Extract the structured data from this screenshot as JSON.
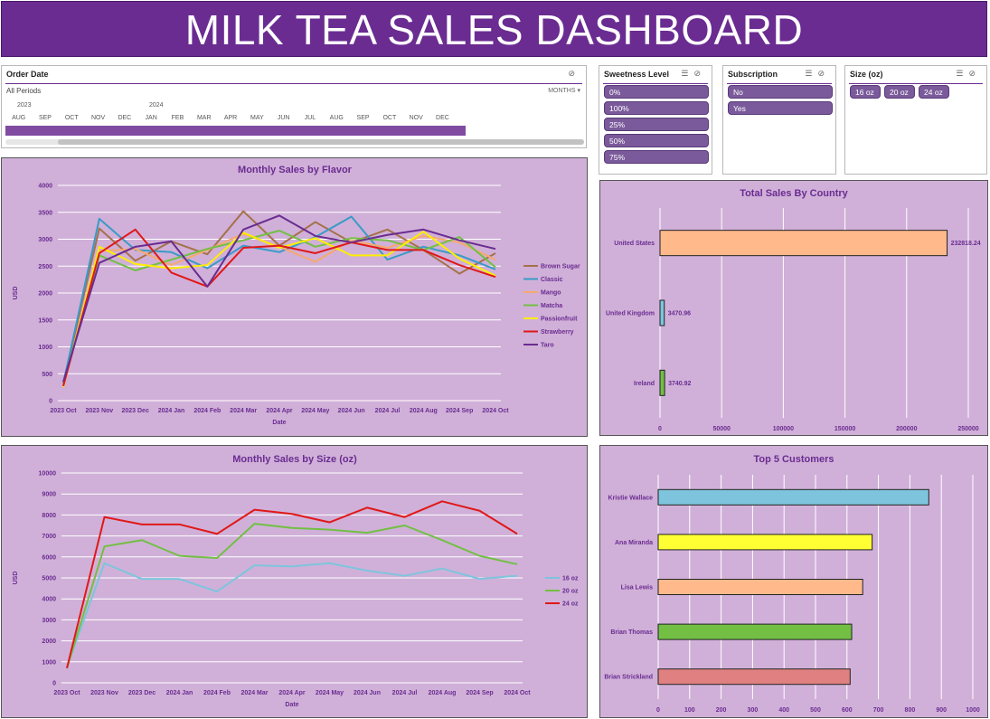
{
  "title": "MILK TEA SALES DASHBOARD",
  "order_date": {
    "label": "Order Date",
    "periods": "All Periods",
    "granularity": "MONTHS",
    "years": [
      "2023",
      "2024"
    ],
    "months": [
      "AUG",
      "SEP",
      "OCT",
      "NOV",
      "DEC",
      "JAN",
      "FEB",
      "MAR",
      "APR",
      "MAY",
      "JUN",
      "JUL",
      "AUG",
      "SEP",
      "OCT",
      "NOV",
      "DEC"
    ]
  },
  "sweetness": {
    "label": "Sweetness Level",
    "items": [
      "0%",
      "100%",
      "25%",
      "50%",
      "75%"
    ]
  },
  "subscription": {
    "label": "Subscription",
    "items": [
      "No",
      "Yes"
    ]
  },
  "size": {
    "label": "Size (oz)",
    "items": [
      "16 oz",
      "20 oz",
      "24 oz"
    ]
  },
  "chart_data": [
    {
      "type": "line",
      "title": "Monthly Sales by Flavor",
      "xlabel": "Date",
      "ylabel": "USD",
      "ylim": [
        0,
        4000
      ],
      "yticks": [
        0,
        500,
        1000,
        1500,
        2000,
        2500,
        3000,
        3500,
        4000
      ],
      "grid": true,
      "legend": "right",
      "categories": [
        "2023 Oct",
        "2023 Nov",
        "2023 Dec",
        "2024 Jan",
        "2024 Feb",
        "2024 Mar",
        "2024 Apr",
        "2024 May",
        "2024 Jun",
        "2024 Jul",
        "2024 Aug",
        "2024 Sep",
        "2024 Oct"
      ],
      "series": [
        {
          "name": "Brown Sugar",
          "color": "#a5714a",
          "values": [
            310,
            3200,
            2600,
            2960,
            2720,
            3520,
            2880,
            3320,
            2940,
            3180,
            2800,
            2360,
            2740
          ]
        },
        {
          "name": "Classic",
          "color": "#3a9ac8",
          "values": [
            320,
            3380,
            2800,
            2760,
            2460,
            2880,
            2760,
            3040,
            3420,
            2620,
            2860,
            2700,
            2440
          ]
        },
        {
          "name": "Mango",
          "color": "#f7a86e",
          "values": [
            290,
            2780,
            2820,
            2520,
            2800,
            3100,
            2860,
            2580,
            2980,
            2840,
            3060,
            2940,
            2620
          ]
        },
        {
          "name": "Matcha",
          "color": "#72bf44",
          "values": [
            330,
            2700,
            2420,
            2620,
            2820,
            2980,
            3160,
            2860,
            3020,
            2980,
            2800,
            3040,
            2480
          ]
        },
        {
          "name": "Passionfruit",
          "color": "#ffed00",
          "values": [
            250,
            2860,
            2540,
            2460,
            2520,
            3120,
            2840,
            3020,
            2700,
            2700,
            3140,
            2640,
            2320
          ]
        },
        {
          "name": "Strawberry",
          "color": "#e01818",
          "values": [
            270,
            2740,
            3180,
            2380,
            2120,
            2840,
            2880,
            2740,
            2940,
            2800,
            2800,
            2520,
            2300
          ]
        },
        {
          "name": "Taro",
          "color": "#6a2c91",
          "values": [
            350,
            2560,
            2860,
            2960,
            2120,
            3180,
            3440,
            3060,
            2940,
            3080,
            3180,
            2980,
            2820
          ]
        }
      ]
    },
    {
      "type": "line",
      "title": "Monthly Sales by Size (oz)",
      "xlabel": "Date",
      "ylabel": "USD",
      "ylim": [
        0,
        10000
      ],
      "yticks": [
        0,
        1000,
        2000,
        3000,
        4000,
        5000,
        6000,
        7000,
        8000,
        9000,
        10000
      ],
      "grid": true,
      "legend": "right",
      "categories": [
        "2023 Oct",
        "2023 Nov",
        "2023 Dec",
        "2024 Jan",
        "2024 Feb",
        "2024 Mar",
        "2024 Apr",
        "2024 May",
        "2024 Jun",
        "2024 Jul",
        "2024 Aug",
        "2024 Sep",
        "2024 Oct"
      ],
      "series": [
        {
          "name": "16 oz",
          "color": "#7ec4dd",
          "values": [
            750,
            5700,
            4950,
            4950,
            4350,
            5600,
            5550,
            5700,
            5350,
            5100,
            5450,
            4950,
            5100
          ]
        },
        {
          "name": "20 oz",
          "color": "#72bf44",
          "values": [
            700,
            6500,
            6800,
            6050,
            5950,
            7580,
            7380,
            7300,
            7150,
            7500,
            6800,
            6050,
            5650
          ]
        },
        {
          "name": "24 oz",
          "color": "#e01818",
          "values": [
            700,
            7900,
            7550,
            7550,
            7100,
            8250,
            8050,
            7650,
            8350,
            7900,
            8650,
            8200,
            7100
          ]
        }
      ]
    },
    {
      "type": "bar",
      "orientation": "horizontal",
      "title": "Total Sales By Country",
      "categories": [
        "United States",
        "United Kingdom",
        "Ireland"
      ],
      "values": [
        232818.24,
        3470.96,
        3740.92
      ],
      "value_labels": [
        "232818.24",
        "3470.96",
        "3740.92"
      ],
      "colors": [
        "#ffb98a",
        "#7ec4dd",
        "#72bf44"
      ],
      "xlim": [
        0,
        250000
      ],
      "xticks": [
        0,
        50000,
        100000,
        150000,
        200000,
        250000
      ],
      "grid": true
    },
    {
      "type": "bar",
      "orientation": "horizontal",
      "title": "Top 5 Customers",
      "categories": [
        "Kristie Wallace",
        "Ana Miranda",
        "Lisa Lewis",
        "Brian Thomas",
        "Brian Strickland"
      ],
      "values": [
        860,
        680,
        650,
        615,
        610
      ],
      "colors": [
        "#7ec4dd",
        "#ffff33",
        "#ffb98a",
        "#72bf44",
        "#e08080"
      ],
      "xlim": [
        0,
        1000
      ],
      "xticks": [
        0,
        100,
        200,
        300,
        400,
        500,
        600,
        700,
        800,
        900,
        1000
      ],
      "grid": true
    }
  ]
}
